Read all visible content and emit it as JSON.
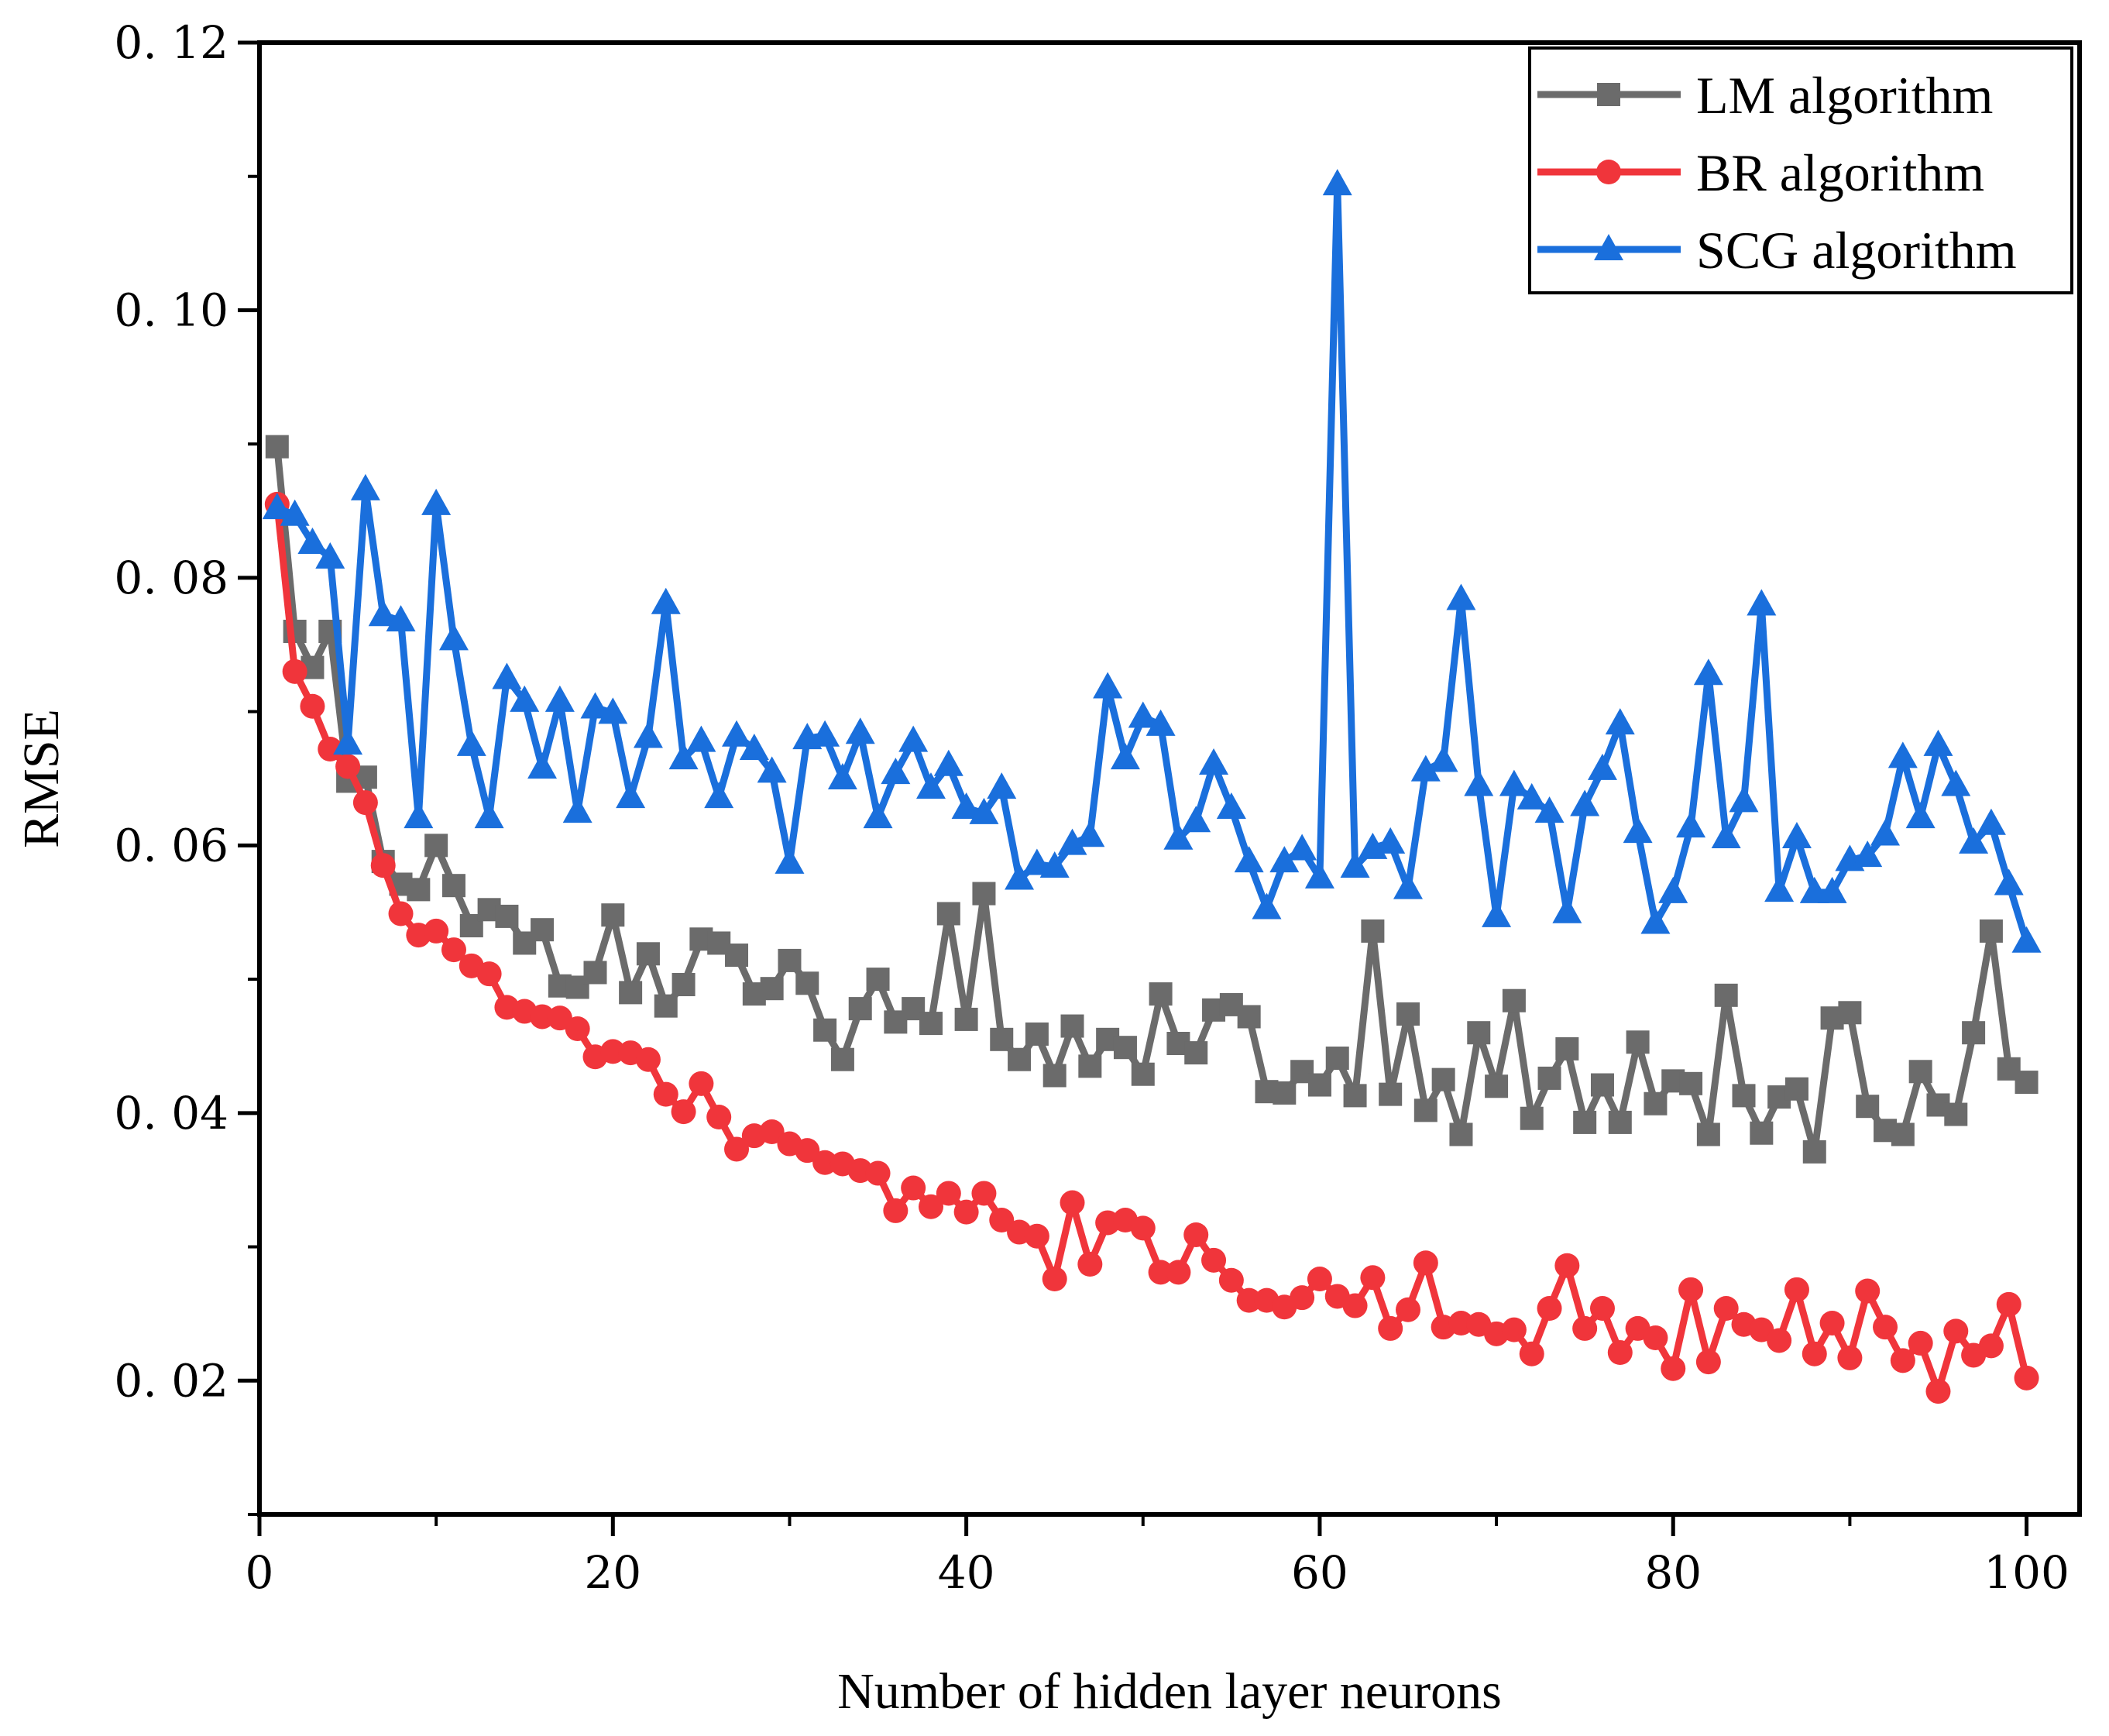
{
  "chart_data": {
    "type": "line",
    "title": "",
    "xlabel": "Number of hidden layer neurons",
    "ylabel": "RMSE",
    "xlim": [
      0,
      103
    ],
    "ylim": [
      0.01,
      0.12
    ],
    "x_ticks": [
      0,
      20,
      40,
      60,
      80,
      100
    ],
    "x_tick_labels": [
      "0",
      "20",
      "40",
      "60",
      "80",
      "100"
    ],
    "y_ticks": [
      0.02,
      0.04,
      0.06,
      0.08,
      0.1,
      0.12
    ],
    "y_tick_labels": [
      "0. 02",
      "0. 04",
      "0. 06",
      "0. 08",
      "0. 10",
      "0. 12"
    ],
    "legend_position": "top-right",
    "x": [
      1,
      2,
      3,
      4,
      5,
      6,
      7,
      8,
      9,
      10,
      11,
      12,
      13,
      14,
      15,
      16,
      17,
      18,
      19,
      20,
      21,
      22,
      23,
      24,
      25,
      26,
      27,
      28,
      29,
      30,
      31,
      32,
      33,
      34,
      35,
      36,
      37,
      38,
      39,
      40,
      41,
      42,
      43,
      44,
      45,
      46,
      47,
      48,
      49,
      50,
      51,
      52,
      53,
      54,
      55,
      56,
      57,
      58,
      59,
      60,
      61,
      62,
      63,
      64,
      65,
      66,
      67,
      68,
      69,
      70,
      71,
      72,
      73,
      74,
      75,
      76,
      77,
      78,
      79,
      80,
      81,
      82,
      83,
      84,
      85,
      86,
      87,
      88,
      89,
      90,
      91,
      92,
      93,
      94,
      95,
      96,
      97,
      98,
      99,
      100
    ],
    "series": [
      {
        "name": "LM algorithm",
        "color": "#6b6b6b",
        "marker": "square",
        "values": [
          0.0898,
          0.076,
          0.0733,
          0.076,
          0.0648,
          0.0651,
          0.0588,
          0.0571,
          0.0567,
          0.06,
          0.057,
          0.054,
          0.0552,
          0.0547,
          0.0527,
          0.0537,
          0.0495,
          0.0494,
          0.0505,
          0.0548,
          0.049,
          0.0519,
          0.048,
          0.0496,
          0.053,
          0.0527,
          0.0518,
          0.0489,
          0.0493,
          0.0514,
          0.0497,
          0.0462,
          0.044,
          0.0478,
          0.05,
          0.0468,
          0.0478,
          0.0467,
          0.0549,
          0.047,
          0.0564,
          0.0455,
          0.044,
          0.0459,
          0.0428,
          0.0465,
          0.0435,
          0.0455,
          0.0449,
          0.0429,
          0.0489,
          0.0452,
          0.0445,
          0.0477,
          0.0481,
          0.0472,
          0.0416,
          0.0415,
          0.0431,
          0.0421,
          0.0441,
          0.0413,
          0.0536,
          0.0414,
          0.0474,
          0.0402,
          0.0425,
          0.0384,
          0.046,
          0.042,
          0.0484,
          0.0396,
          0.0426,
          0.0448,
          0.0393,
          0.0421,
          0.0393,
          0.0453,
          0.0407,
          0.0424,
          0.0422,
          0.0384,
          0.0488,
          0.0413,
          0.0385,
          0.0412,
          0.0418,
          0.0371,
          0.0471,
          0.0475,
          0.0405,
          0.0387,
          0.0384,
          0.0431,
          0.0406,
          0.0399,
          0.046,
          0.0536,
          0.0433,
          0.0423
        ]
      },
      {
        "name": "BR algorithm",
        "color": "#f0353b",
        "marker": "circle",
        "values": [
          0.0855,
          0.073,
          0.0704,
          0.0672,
          0.0659,
          0.0632,
          0.0585,
          0.0549,
          0.0533,
          0.0536,
          0.0522,
          0.051,
          0.0504,
          0.0479,
          0.0476,
          0.0472,
          0.0471,
          0.0463,
          0.0442,
          0.0446,
          0.0445,
          0.044,
          0.0414,
          0.0401,
          0.0422,
          0.0397,
          0.0373,
          0.0383,
          0.0386,
          0.0377,
          0.0372,
          0.0363,
          0.0362,
          0.0357,
          0.0355,
          0.0327,
          0.0344,
          0.033,
          0.034,
          0.0326,
          0.034,
          0.032,
          0.0311,
          0.0308,
          0.0276,
          0.0333,
          0.0287,
          0.0318,
          0.032,
          0.0314,
          0.0281,
          0.0281,
          0.0309,
          0.029,
          0.0275,
          0.026,
          0.026,
          0.0255,
          0.0262,
          0.0276,
          0.0263,
          0.0256,
          0.0277,
          0.0239,
          0.0253,
          0.0288,
          0.024,
          0.0243,
          0.0242,
          0.0235,
          0.0238,
          0.022,
          0.0254,
          0.0286,
          0.0239,
          0.0254,
          0.0221,
          0.0239,
          0.0232,
          0.0209,
          0.0268,
          0.0214,
          0.0254,
          0.0242,
          0.0238,
          0.023,
          0.0268,
          0.022,
          0.0243,
          0.0217,
          0.0267,
          0.024,
          0.0215,
          0.0228,
          0.0192,
          0.0237,
          0.0219,
          0.0226,
          0.0257,
          0.0202
        ]
      },
      {
        "name": "SCG algorithm",
        "color": "#1a6fdc",
        "marker": "triangle",
        "values": [
          0.0852,
          0.0847,
          0.0826,
          0.0815,
          0.0676,
          0.0866,
          0.0772,
          0.0768,
          0.0621,
          0.0855,
          0.0754,
          0.0675,
          0.0621,
          0.0725,
          0.0708,
          0.0658,
          0.0708,
          0.0625,
          0.0703,
          0.0699,
          0.0636,
          0.0681,
          0.0781,
          0.0665,
          0.0678,
          0.0636,
          0.0682,
          0.0672,
          0.0655,
          0.0587,
          0.068,
          0.0682,
          0.065,
          0.0684,
          0.0621,
          0.0654,
          0.0678,
          0.0643,
          0.066,
          0.0628,
          0.0624,
          0.0643,
          0.0575,
          0.0586,
          0.0584,
          0.0601,
          0.0607,
          0.0718,
          0.0665,
          0.0696,
          0.069,
          0.0605,
          0.0618,
          0.0661,
          0.0628,
          0.0588,
          0.0553,
          0.0588,
          0.0597,
          0.0576,
          0.1094,
          0.0584,
          0.0598,
          0.0602,
          0.0568,
          0.0656,
          0.0663,
          0.0784,
          0.0645,
          0.0547,
          0.0645,
          0.0635,
          0.0625,
          0.055,
          0.063,
          0.0657,
          0.0691,
          0.061,
          0.0542,
          0.0565,
          0.0614,
          0.0728,
          0.0606,
          0.0633,
          0.078,
          0.0566,
          0.0606,
          0.0565,
          0.0565,
          0.0589,
          0.0592,
          0.0608,
          0.0666,
          0.0621,
          0.0675,
          0.0645,
          0.0602,
          0.0616,
          0.0571,
          0.0528
        ]
      }
    ]
  }
}
